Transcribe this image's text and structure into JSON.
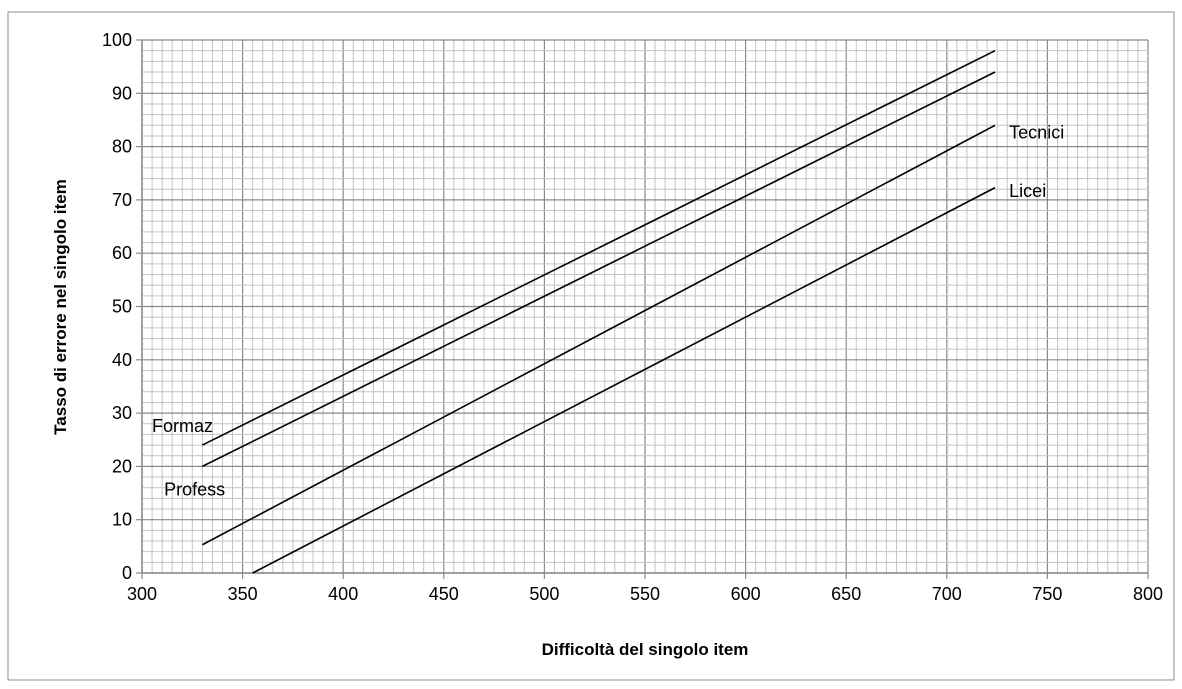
{
  "chart_data": {
    "type": "line",
    "title": "",
    "xlabel": "Difficoltà del singolo item",
    "ylabel": "Tasso di errore nel singolo item",
    "xlim": [
      300,
      800
    ],
    "ylim": [
      0,
      100
    ],
    "x_ticks": [
      "300",
      "350",
      "400",
      "450",
      "500",
      "550",
      "600",
      "650",
      "700",
      "750",
      "800"
    ],
    "y_ticks": [
      "0",
      "10",
      "20",
      "30",
      "40",
      "50",
      "60",
      "70",
      "80",
      "90",
      "100"
    ],
    "grid": true,
    "legend": "none",
    "series": [
      {
        "name": "Formaz",
        "x": [
          330,
          724
        ],
        "y": [
          24,
          98
        ]
      },
      {
        "name": "Profess",
        "x": [
          330,
          724
        ],
        "y": [
          20,
          94
        ]
      },
      {
        "name": "Tecnici",
        "x": [
          330,
          724
        ],
        "y": [
          5.3,
          84
        ]
      },
      {
        "name": "Licei",
        "x": [
          355,
          724
        ],
        "y": [
          0,
          72.3
        ]
      }
    ],
    "colors": {
      "line": "#000000",
      "grid": "#9a9a9a",
      "border": "#8c8c8c"
    }
  }
}
